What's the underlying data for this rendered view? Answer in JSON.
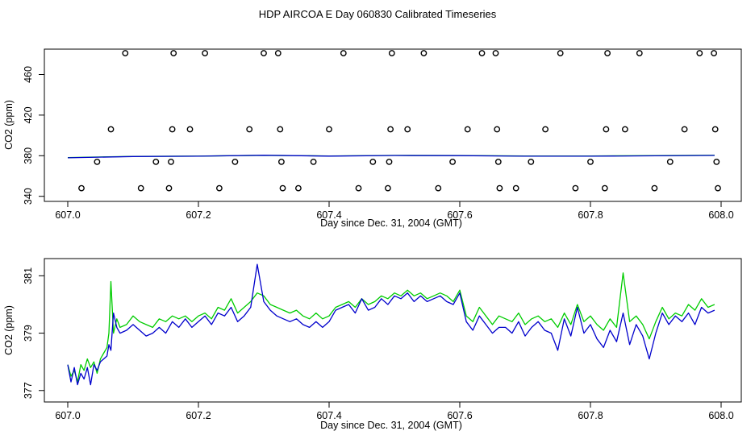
{
  "figure_title": "HDP AIRCOA E  Day 060830  Calibrated Timeseries",
  "colors": {
    "series_green": "#00cc00",
    "series_blue": "#0000cc",
    "axis": "#000000",
    "marker": "#000000"
  },
  "chart_data": [
    {
      "type": "line",
      "xlabel": "Day since Dec. 31, 2004 (GMT)",
      "ylabel": "CO2 (ppm)",
      "xlim": [
        607.0,
        608.0
      ],
      "ylim": [
        335,
        485
      ],
      "xticks": [
        "607.0",
        "607.2",
        "607.4",
        "607.6",
        "607.8",
        "608.0"
      ],
      "yticks": [
        "340",
        "380",
        "420",
        "460"
      ],
      "series": [
        {
          "color": "#00cc00",
          "x": [
            607.0,
            607.1,
            607.2,
            607.3,
            607.4,
            607.5,
            607.6,
            607.7,
            607.8,
            607.9,
            607.99
          ],
          "y": [
            378.2,
            379.4,
            379.6,
            380.4,
            379.8,
            380.3,
            380.2,
            379.7,
            379.8,
            380.1,
            380.5
          ]
        },
        {
          "color": "#0000cc",
          "x": [
            607.0,
            607.1,
            607.2,
            607.3,
            607.4,
            607.5,
            607.6,
            607.7,
            607.8,
            607.9,
            607.99
          ],
          "y": [
            377.9,
            379.2,
            379.5,
            380.5,
            379.6,
            380.2,
            380.1,
            379.5,
            379.5,
            379.9,
            380.3
          ]
        }
      ],
      "scatter_points": [
        [
          607.021,
          348
        ],
        [
          607.045,
          374
        ],
        [
          607.066,
          406
        ],
        [
          607.088,
          481
        ],
        [
          607.112,
          348
        ],
        [
          607.135,
          374
        ],
        [
          607.155,
          348
        ],
        [
          607.158,
          374
        ],
        [
          607.16,
          406
        ],
        [
          607.162,
          481
        ],
        [
          607.187,
          406
        ],
        [
          607.21,
          481
        ],
        [
          607.232,
          348
        ],
        [
          607.256,
          374
        ],
        [
          607.278,
          406
        ],
        [
          607.3,
          481
        ],
        [
          607.322,
          481
        ],
        [
          607.325,
          406
        ],
        [
          607.327,
          374
        ],
        [
          607.329,
          348
        ],
        [
          607.353,
          348
        ],
        [
          607.376,
          374
        ],
        [
          607.4,
          406
        ],
        [
          607.422,
          481
        ],
        [
          607.445,
          348
        ],
        [
          607.467,
          374
        ],
        [
          607.49,
          348
        ],
        [
          607.492,
          374
        ],
        [
          607.494,
          406
        ],
        [
          607.496,
          481
        ],
        [
          607.52,
          406
        ],
        [
          607.545,
          481
        ],
        [
          607.567,
          348
        ],
        [
          607.589,
          374
        ],
        [
          607.612,
          406
        ],
        [
          607.634,
          481
        ],
        [
          607.655,
          481
        ],
        [
          607.657,
          406
        ],
        [
          607.659,
          374
        ],
        [
          607.661,
          348
        ],
        [
          607.686,
          348
        ],
        [
          607.709,
          374
        ],
        [
          607.731,
          406
        ],
        [
          607.754,
          481
        ],
        [
          607.777,
          348
        ],
        [
          607.8,
          374
        ],
        [
          607.822,
          348
        ],
        [
          607.824,
          406
        ],
        [
          607.826,
          481
        ],
        [
          607.853,
          406
        ],
        [
          607.875,
          481
        ],
        [
          607.898,
          348
        ],
        [
          607.922,
          374
        ],
        [
          607.944,
          406
        ],
        [
          607.967,
          481
        ],
        [
          607.989,
          481
        ],
        [
          607.991,
          406
        ],
        [
          607.993,
          374
        ],
        [
          607.995,
          348
        ]
      ]
    },
    {
      "type": "line",
      "xlabel": "Day since Dec. 31, 2004 (GMT)",
      "ylabel": "CO2 (ppm)",
      "xlim": [
        607.0,
        608.0
      ],
      "ylim": [
        376.6,
        381.6
      ],
      "xticks": [
        "607.0",
        "607.2",
        "607.4",
        "607.6",
        "607.8",
        "608.0"
      ],
      "yticks": [
        "377",
        "379",
        "381"
      ],
      "series": [
        {
          "color": "#00cc00",
          "x": [
            607.0,
            607.005,
            607.01,
            607.015,
            607.02,
            607.025,
            607.03,
            607.035,
            607.04,
            607.045,
            607.05,
            607.055,
            607.06,
            607.063,
            607.066,
            607.07,
            607.075,
            607.08,
            607.09,
            607.1,
            607.11,
            607.12,
            607.13,
            607.14,
            607.15,
            607.16,
            607.17,
            607.18,
            607.19,
            607.2,
            607.21,
            607.22,
            607.23,
            607.24,
            607.25,
            607.26,
            607.27,
            607.28,
            607.29,
            607.3,
            607.31,
            607.32,
            607.33,
            607.34,
            607.35,
            607.36,
            607.37,
            607.38,
            607.39,
            607.4,
            607.41,
            607.42,
            607.43,
            607.44,
            607.45,
            607.46,
            607.47,
            607.48,
            607.49,
            607.5,
            607.51,
            607.52,
            607.53,
            607.54,
            607.55,
            607.56,
            607.57,
            607.58,
            607.59,
            607.6,
            607.61,
            607.62,
            607.63,
            607.64,
            607.65,
            607.66,
            607.67,
            607.68,
            607.69,
            607.7,
            607.71,
            607.72,
            607.73,
            607.74,
            607.75,
            607.76,
            607.77,
            607.78,
            607.79,
            607.8,
            607.81,
            607.82,
            607.83,
            607.84,
            607.85,
            607.86,
            607.87,
            607.88,
            607.89,
            607.9,
            607.91,
            607.92,
            607.93,
            607.94,
            607.95,
            607.96,
            607.97,
            607.98,
            607.99
          ],
          "y": [
            377.9,
            377.5,
            377.7,
            377.3,
            377.9,
            377.7,
            378.1,
            377.8,
            378.0,
            377.6,
            378.1,
            378.3,
            378.5,
            379.0,
            380.8,
            379.0,
            379.5,
            379.2,
            379.3,
            379.6,
            379.4,
            379.3,
            379.2,
            379.5,
            379.4,
            379.6,
            379.5,
            379.6,
            379.4,
            379.6,
            379.7,
            379.5,
            379.9,
            379.8,
            380.2,
            379.7,
            379.9,
            380.1,
            380.4,
            380.3,
            380.0,
            379.9,
            379.8,
            379.7,
            379.8,
            379.6,
            379.5,
            379.7,
            379.5,
            379.6,
            379.9,
            380.0,
            380.1,
            379.9,
            380.2,
            380.0,
            380.1,
            380.3,
            380.2,
            380.4,
            380.3,
            380.5,
            380.3,
            380.4,
            380.2,
            380.3,
            380.4,
            380.3,
            380.1,
            380.5,
            379.6,
            379.4,
            379.9,
            379.6,
            379.3,
            379.6,
            379.5,
            379.4,
            379.7,
            379.3,
            379.5,
            379.6,
            379.4,
            379.5,
            379.2,
            379.7,
            379.3,
            380.0,
            379.4,
            379.6,
            379.3,
            379.1,
            379.5,
            379.2,
            381.1,
            379.4,
            379.6,
            379.3,
            378.8,
            379.4,
            379.9,
            379.5,
            379.7,
            379.6,
            380.0,
            379.8,
            380.2,
            379.9,
            380.0
          ]
        },
        {
          "color": "#0000cc",
          "x": [
            607.0,
            607.005,
            607.01,
            607.015,
            607.02,
            607.025,
            607.03,
            607.035,
            607.04,
            607.045,
            607.05,
            607.055,
            607.06,
            607.063,
            607.066,
            607.07,
            607.075,
            607.08,
            607.09,
            607.1,
            607.11,
            607.12,
            607.13,
            607.14,
            607.15,
            607.16,
            607.17,
            607.18,
            607.19,
            607.2,
            607.21,
            607.22,
            607.23,
            607.24,
            607.25,
            607.26,
            607.27,
            607.28,
            607.29,
            607.3,
            607.31,
            607.32,
            607.33,
            607.34,
            607.35,
            607.36,
            607.37,
            607.38,
            607.39,
            607.4,
            607.41,
            607.42,
            607.43,
            607.44,
            607.45,
            607.46,
            607.47,
            607.48,
            607.49,
            607.5,
            607.51,
            607.52,
            607.53,
            607.54,
            607.55,
            607.56,
            607.57,
            607.58,
            607.59,
            607.6,
            607.61,
            607.62,
            607.63,
            607.64,
            607.65,
            607.66,
            607.67,
            607.68,
            607.69,
            607.7,
            607.71,
            607.72,
            607.73,
            607.74,
            607.75,
            607.76,
            607.77,
            607.78,
            607.79,
            607.8,
            607.81,
            607.82,
            607.83,
            607.84,
            607.85,
            607.86,
            607.87,
            607.88,
            607.89,
            607.9,
            607.91,
            607.92,
            607.93,
            607.94,
            607.95,
            607.96,
            607.97,
            607.98,
            607.99
          ],
          "y": [
            377.9,
            377.3,
            377.8,
            377.2,
            377.6,
            377.4,
            377.8,
            377.2,
            377.9,
            377.7,
            378.0,
            378.1,
            378.2,
            378.6,
            378.4,
            379.7,
            379.2,
            379.0,
            379.1,
            379.3,
            379.1,
            378.9,
            379.0,
            379.2,
            379.0,
            379.4,
            379.2,
            379.5,
            379.2,
            379.4,
            379.6,
            379.3,
            379.7,
            379.6,
            379.9,
            379.4,
            379.6,
            379.9,
            381.4,
            380.1,
            379.8,
            379.6,
            379.5,
            379.4,
            379.5,
            379.3,
            379.2,
            379.4,
            379.2,
            379.4,
            379.8,
            379.9,
            380.0,
            379.7,
            380.2,
            379.8,
            379.9,
            380.2,
            380.0,
            380.3,
            380.2,
            380.4,
            380.1,
            380.3,
            380.1,
            380.2,
            380.3,
            380.1,
            380.0,
            380.4,
            379.4,
            379.1,
            379.6,
            379.3,
            379.0,
            379.2,
            379.2,
            379.0,
            379.4,
            378.9,
            379.2,
            379.4,
            379.1,
            379.0,
            378.4,
            379.5,
            378.9,
            379.9,
            379.0,
            379.3,
            378.8,
            378.5,
            379.1,
            378.7,
            379.7,
            378.6,
            379.3,
            378.9,
            378.1,
            379.0,
            379.7,
            379.3,
            379.6,
            379.4,
            379.7,
            379.3,
            379.9,
            379.7,
            379.8
          ]
        }
      ]
    }
  ]
}
